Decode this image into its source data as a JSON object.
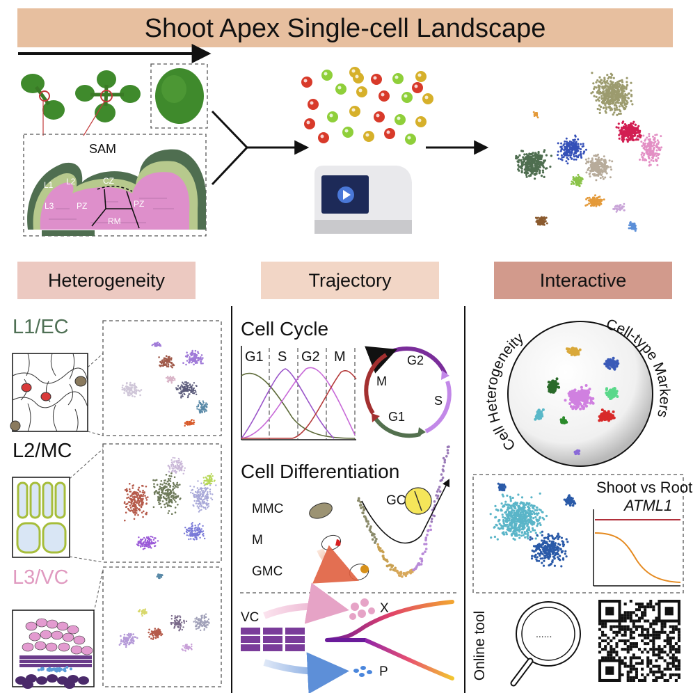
{
  "title": "Shoot Apex Single-cell Landscape",
  "sam": {
    "title": "SAM",
    "labels": [
      "L1",
      "L2",
      "L3",
      "CZ",
      "PZ",
      "PZ",
      "RM"
    ]
  },
  "sections": {
    "heterogeneity": "Heterogeneity",
    "trajectory": "Trajectory",
    "interactive": "Interactive"
  },
  "layers": {
    "l1": "L1/EC",
    "l2": "L2/MC",
    "l3": "L3/VC"
  },
  "cell_cycle": {
    "title": "Cell Cycle",
    "phases": [
      "G1",
      "S",
      "G2",
      "M"
    ],
    "wheel_labels": [
      "G2",
      "S",
      "G1",
      "M"
    ]
  },
  "cell_differentiation": {
    "title": "Cell Differentiation",
    "cells": [
      "MMC",
      "M",
      "GMC",
      "GC"
    ],
    "vascular": [
      "VC",
      "X",
      "P"
    ]
  },
  "interactive": {
    "globe_left": "Cell Heterogeneity",
    "globe_right": "Cell-type Markers",
    "compare_title": "Shoot vs Root",
    "gene": "ATML1",
    "online_tool": "Online tool"
  },
  "colors": {
    "title_bg": "#e7bf9f",
    "heterogeneity_bg": "#ecc9c1",
    "trajectory_bg": "#f2d6c6",
    "interactive_bg": "#d29a8c",
    "l1": "#4f7055",
    "l3": "#e09ac0",
    "leaf": "#3f8a2c",
    "layer_dark": "#4f6e50",
    "layer_mid": "#b7c98d",
    "layer_pink": "#de8fcb"
  }
}
